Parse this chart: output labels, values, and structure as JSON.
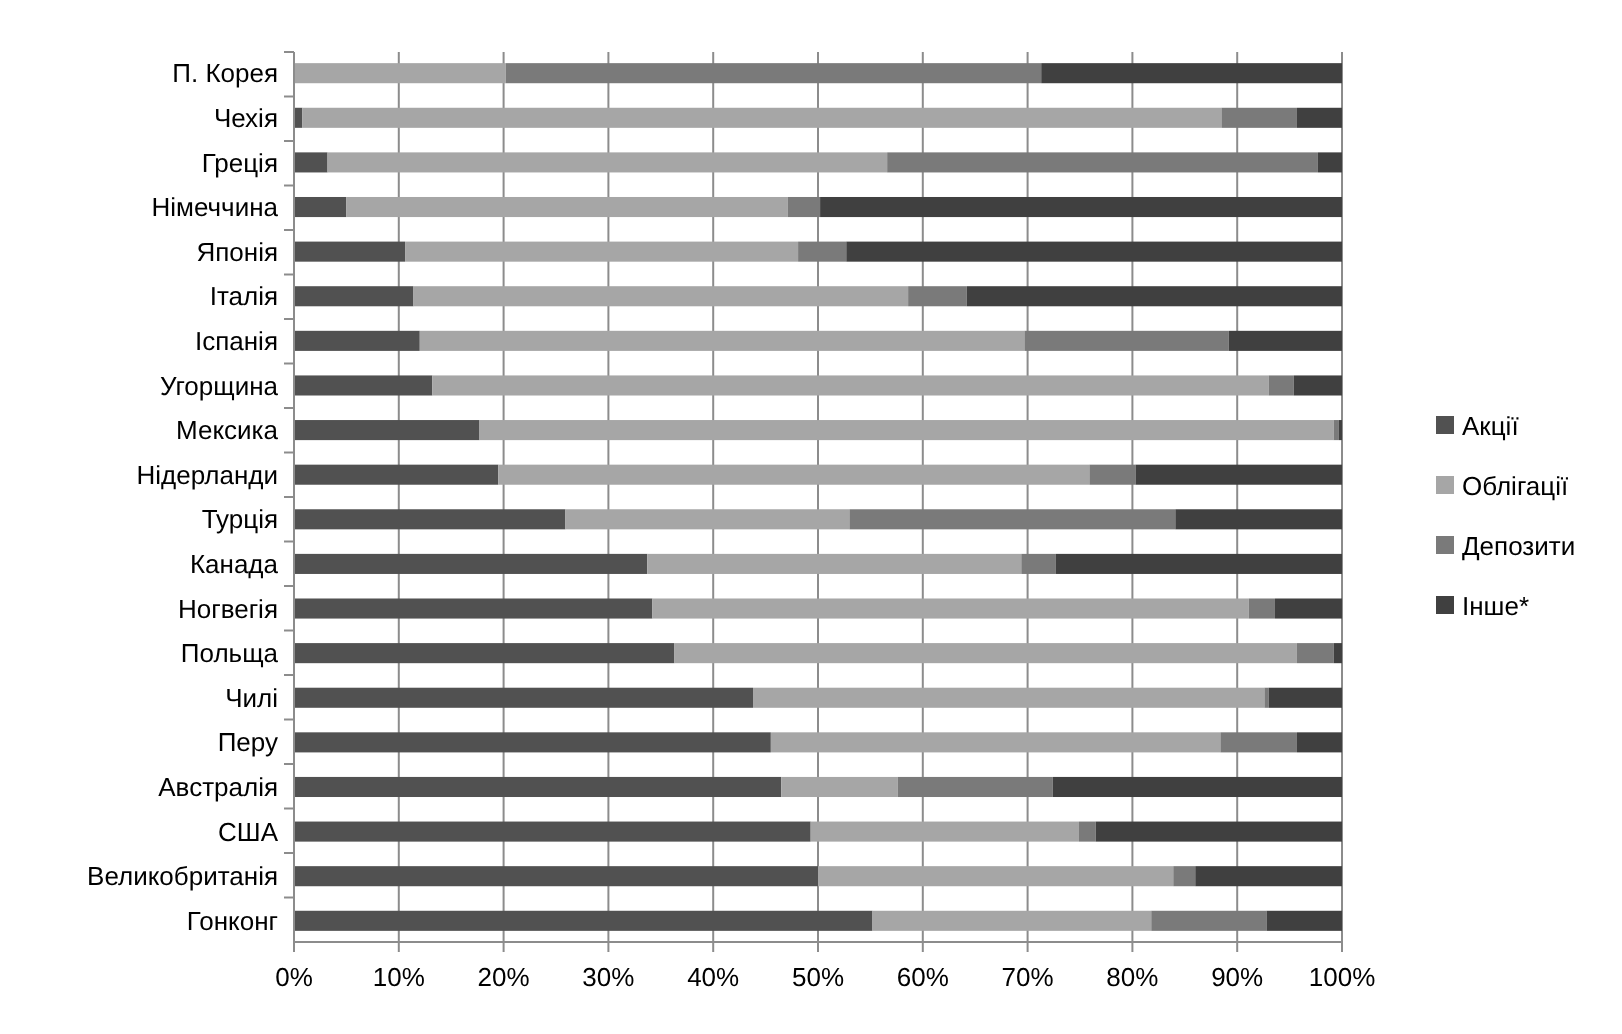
{
  "chart_data": {
    "type": "bar",
    "orientation": "horizontal",
    "stacked": true,
    "categories": [
      "П. Корея",
      "Чехія",
      "Греція",
      "Німеччина",
      "Японія",
      "Італія",
      "Іспанія",
      "Угорщина",
      "Мексика",
      "Нідерланди",
      "Турція",
      "Канада",
      "Ногвегія",
      "Польща",
      "Чилі",
      "Перу",
      "Австралія",
      "США",
      "Великобританія",
      "Гонконг"
    ],
    "series": [
      {
        "name": "Акції",
        "color": "#515151",
        "values": [
          0,
          0.8,
          3.2,
          5.0,
          10.6,
          11.4,
          12.0,
          13.2,
          17.7,
          19.5,
          25.9,
          33.7,
          34.2,
          36.3,
          43.8,
          45.5,
          46.5,
          49.3,
          50.0,
          55.2
        ]
      },
      {
        "name": "Облігації",
        "color": "#a6a6a6",
        "values": [
          20.2,
          87.7,
          53.4,
          42.1,
          37.5,
          47.2,
          57.7,
          79.8,
          81.5,
          56.4,
          27.1,
          35.7,
          56.9,
          59.4,
          48.8,
          42.9,
          11.1,
          25.6,
          33.9,
          26.6
        ]
      },
      {
        "name": "Депозити",
        "color": "#7a7a7a",
        "values": [
          51.1,
          7.2,
          41.1,
          3.1,
          4.6,
          5.6,
          19.5,
          2.4,
          0.5,
          4.4,
          31.1,
          3.3,
          2.5,
          3.5,
          0.4,
          7.3,
          14.8,
          1.6,
          2.1,
          11.0
        ]
      },
      {
        "name": "Інше*",
        "color": "#404040",
        "values": [
          28.7,
          4.3,
          2.3,
          49.8,
          47.3,
          35.8,
          10.8,
          4.6,
          0.3,
          19.7,
          15.9,
          27.3,
          6.4,
          0.8,
          7.0,
          4.3,
          27.6,
          23.5,
          14.0,
          7.2
        ]
      }
    ],
    "xlim": [
      0,
      100
    ],
    "xticks": [
      {
        "value": 0,
        "label": "0%"
      },
      {
        "value": 10,
        "label": "10%"
      },
      {
        "value": 20,
        "label": "20%"
      },
      {
        "value": 30,
        "label": "30%"
      },
      {
        "value": 40,
        "label": "40%"
      },
      {
        "value": 50,
        "label": "50%"
      },
      {
        "value": 60,
        "label": "60%"
      },
      {
        "value": 70,
        "label": "70%"
      },
      {
        "value": 80,
        "label": "80%"
      },
      {
        "value": 90,
        "label": "90%"
      },
      {
        "value": 100,
        "label": "100%"
      }
    ],
    "grid": "x",
    "legend": "right"
  }
}
